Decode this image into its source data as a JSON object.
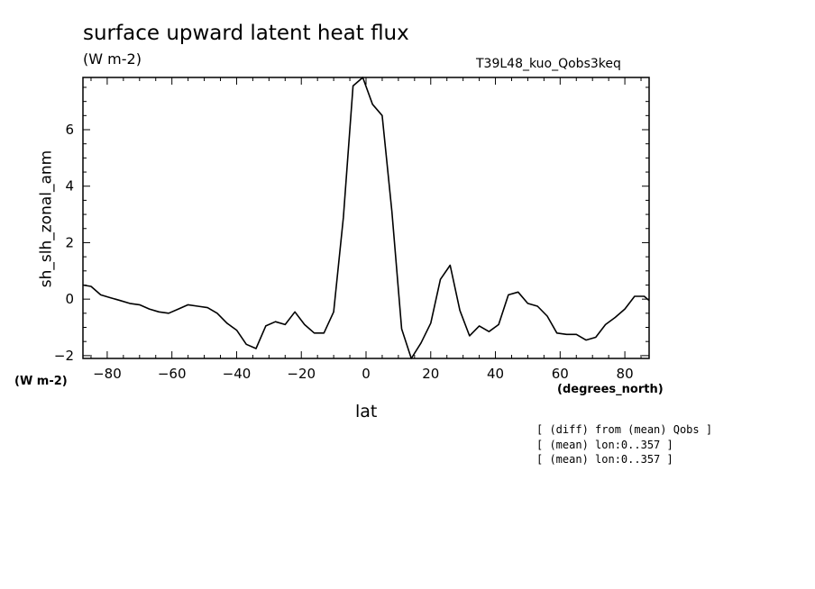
{
  "chart_data": {
    "type": "line",
    "title": "surface upward latent heat flux",
    "units": "(W m-2)",
    "run_label": "T39L48_kuo_Qobs3keq",
    "xlabel": "lat",
    "ylabel": "sh_slh_zonal_anm",
    "x_unit_label": "(degrees_north)",
    "y_unit_label": "(W m-2)",
    "xlim": [
      -87.5,
      87.5
    ],
    "ylim": [
      -2.1,
      7.85
    ],
    "x_ticks": [
      -80,
      -60,
      -40,
      -20,
      0,
      20,
      40,
      60,
      80
    ],
    "x_tick_labels": [
      "−80",
      "−60",
      "−40",
      "−20",
      "0",
      "20",
      "40",
      "60",
      "80"
    ],
    "y_ticks": [
      -2,
      0,
      2,
      4,
      6
    ],
    "y_tick_labels": [
      "−2",
      "0",
      "2",
      "4",
      "6"
    ],
    "grid": false,
    "series": [
      {
        "x": [
          -87.5,
          -85,
          -82,
          -79,
          -76,
          -73,
          -70,
          -67,
          -64,
          -61,
          -58,
          -55,
          -52,
          -49,
          -46,
          -43,
          -40,
          -37,
          -34,
          -31,
          -28,
          -25,
          -22,
          -19,
          -16,
          -13,
          -10,
          -7,
          -4,
          -1,
          2,
          5,
          8,
          11,
          14,
          17,
          20,
          23,
          26,
          29,
          32,
          35,
          38,
          41,
          44,
          47,
          50,
          53,
          56,
          59,
          62,
          65,
          68,
          71,
          74,
          77,
          80,
          83,
          86,
          87.5
        ],
        "y": [
          0.5,
          0.45,
          0.15,
          0.05,
          -0.05,
          -0.15,
          -0.2,
          -0.35,
          -0.45,
          -0.5,
          -0.35,
          -0.2,
          -0.25,
          -0.3,
          -0.5,
          -0.85,
          -1.1,
          -1.6,
          -1.75,
          -0.95,
          -0.8,
          -0.9,
          -0.45,
          -0.9,
          -1.2,
          -1.2,
          -0.45,
          2.9,
          7.55,
          7.85,
          6.9,
          6.5,
          3.1,
          -1.05,
          -2.1,
          -1.55,
          -0.85,
          0.7,
          1.2,
          -0.4,
          -1.3,
          -0.95,
          -1.15,
          -0.9,
          0.15,
          0.25,
          -0.15,
          -0.25,
          -0.6,
          -1.2,
          -1.25,
          -1.25,
          -1.45,
          -1.35,
          -0.9,
          -0.65,
          -0.35,
          0.1,
          0.1,
          -0.05
        ]
      }
    ]
  },
  "notes": [
    "[ (diff) from (mean) Qobs ]",
    "[ (mean) lon:0..357 ]",
    "[ (mean) lon:0..357 ]"
  ]
}
